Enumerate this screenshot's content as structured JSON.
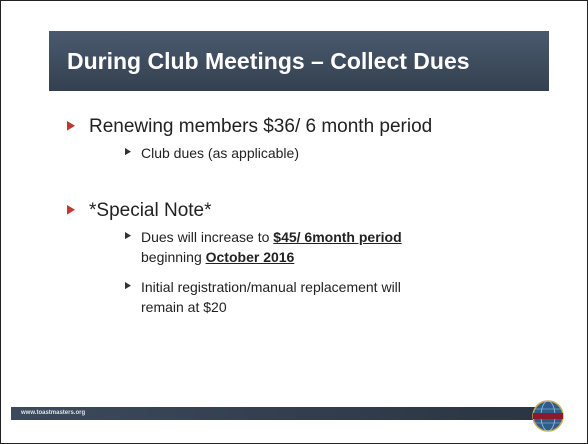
{
  "title": "During Club Meetings – Collect Dues",
  "bullets": [
    {
      "text": [
        {
          "t": "Renewing members  $36/ 6 month period"
        }
      ],
      "sub": [
        {
          "text": [
            {
              "t": "Club dues (as applicable)"
            }
          ]
        }
      ]
    },
    {
      "text": [
        {
          "t": "*Special Note*"
        }
      ],
      "sub": [
        {
          "text": [
            {
              "t": "Dues will increase to "
            },
            {
              "t": "$45/ 6month period",
              "strong": true
            },
            {
              "t": " beginning "
            },
            {
              "t": "October 2016",
              "strong": true
            }
          ]
        },
        {
          "text": [
            {
              "t": "Initial registration/manual replacement will remain at $20"
            }
          ]
        }
      ]
    }
  ],
  "footer": "www.toastmasters.org"
}
